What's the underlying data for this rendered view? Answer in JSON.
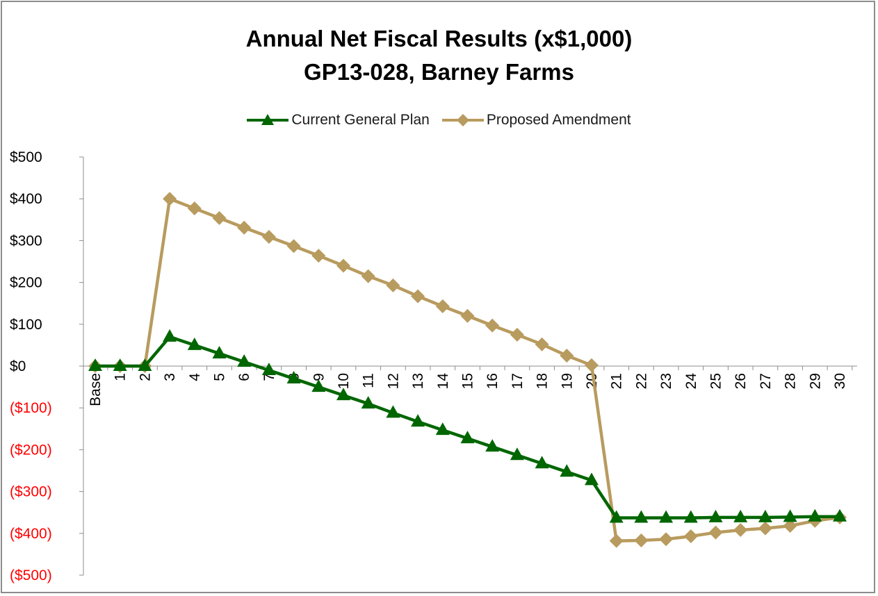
{
  "chart_data": {
    "type": "line",
    "title": "Annual Net Fiscal Results (x$1,000)",
    "subtitle": "GP13-028, Barney Farms",
    "categories": [
      "Base",
      "1",
      "2",
      "3",
      "4",
      "5",
      "6",
      "7",
      "8",
      "9",
      "10",
      "11",
      "12",
      "13",
      "14",
      "15",
      "16",
      "17",
      "18",
      "19",
      "20",
      "21",
      "22",
      "23",
      "24",
      "25",
      "26",
      "27",
      "28",
      "29",
      "30"
    ],
    "ylim": [
      -500,
      500
    ],
    "yticks": [
      500,
      400,
      300,
      200,
      100,
      0,
      -100,
      -200,
      -300,
      -400,
      -500
    ],
    "ytick_labels": [
      "$500",
      "$400",
      "$300",
      "$200",
      "$100",
      "$0",
      "($100)",
      "($200)",
      "($300)",
      "($400)",
      "($500)"
    ],
    "negative_label_color": "#ff0000",
    "positive_label_color": "#000000",
    "grid": false,
    "legend_position": "top",
    "series": [
      {
        "name": "Current General Plan",
        "color": "#006600",
        "marker": "triangle",
        "values": [
          0,
          0,
          0,
          70,
          50,
          30,
          10,
          -10,
          -30,
          -50,
          -70,
          -90,
          -112,
          -133,
          -153,
          -173,
          -193,
          -213,
          -233,
          -253,
          -273,
          -363,
          -363,
          -363,
          -363,
          -362,
          -362,
          -362,
          -361,
          -360,
          -360
        ]
      },
      {
        "name": "Proposed Amendment",
        "color": "#b89b5e",
        "marker": "diamond",
        "values": [
          0,
          0,
          0,
          400,
          377,
          354,
          331,
          309,
          287,
          264,
          240,
          215,
          193,
          167,
          143,
          120,
          97,
          75,
          52,
          25,
          2,
          -418,
          -417,
          -414,
          -407,
          -398,
          -392,
          -388,
          -382,
          -370,
          -362
        ]
      }
    ]
  }
}
